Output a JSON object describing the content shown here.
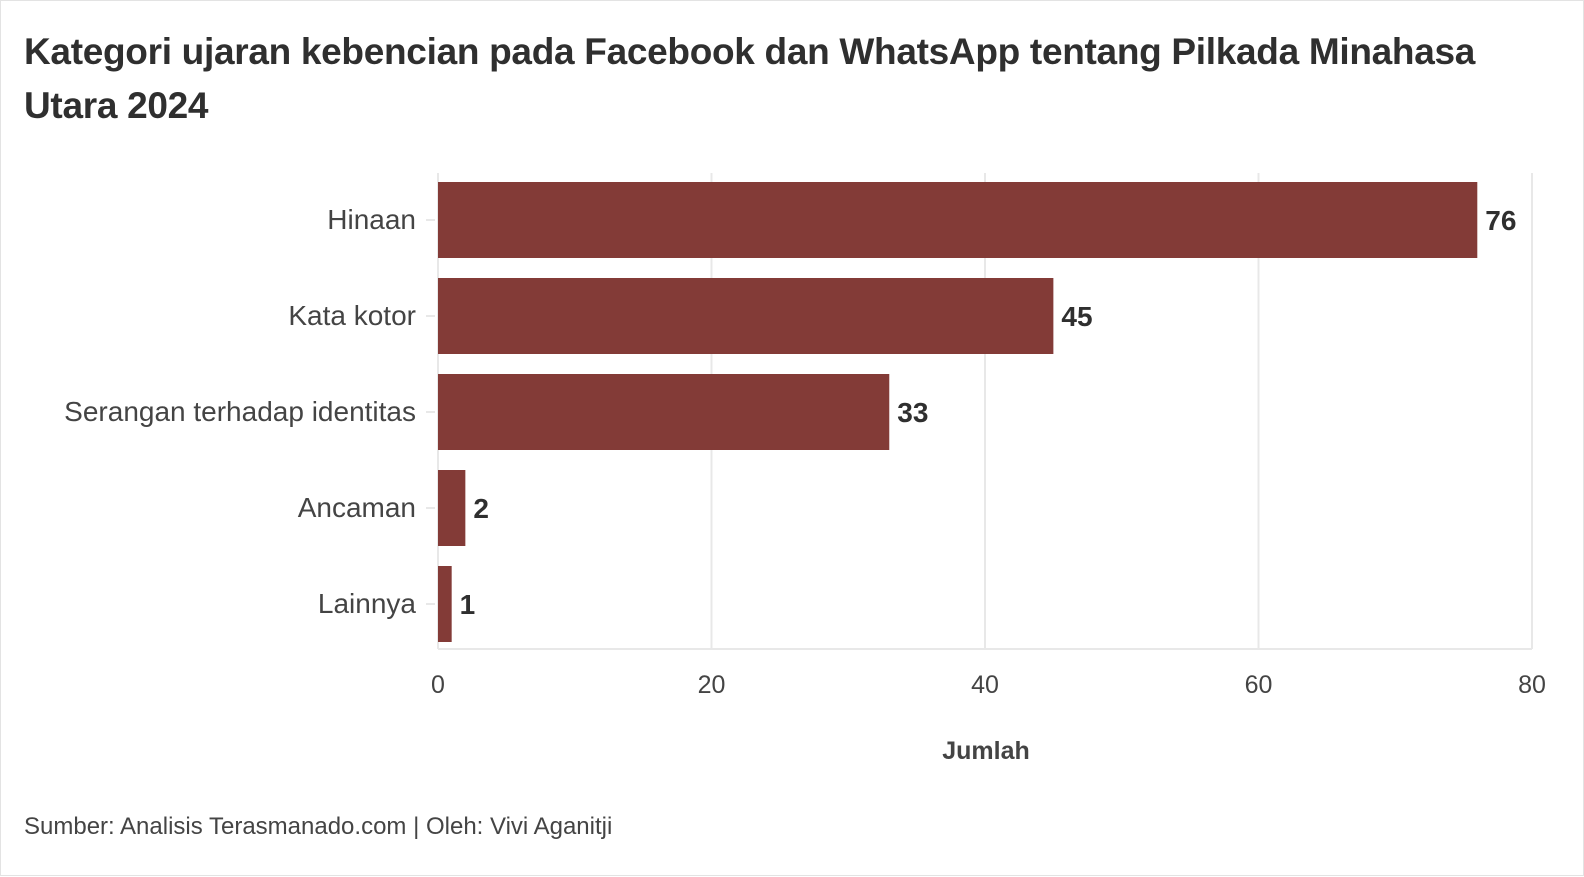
{
  "chart_data": {
    "type": "bar",
    "orientation": "horizontal",
    "title": "Kategori ujaran kebencian pada Facebook dan WhatsApp tentang Pilkada Minahasa Utara 2024",
    "categories": [
      "Hinaan",
      "Kata kotor",
      "Serangan terhadap identitas",
      "Ancaman",
      "Lainnya"
    ],
    "values": [
      76,
      45,
      33,
      2,
      1
    ],
    "xlabel": "Jumlah",
    "ylabel": "",
    "xlim": [
      0,
      80
    ],
    "xticks": [
      "0",
      "20",
      "40",
      "60",
      "80"
    ],
    "grid": "vertical",
    "data_labels": true,
    "legend": "none",
    "bar_color": "#833b37",
    "source": "Sumber: Analisis Terasmanado.com | Oleh: Vivi Aganitji"
  }
}
